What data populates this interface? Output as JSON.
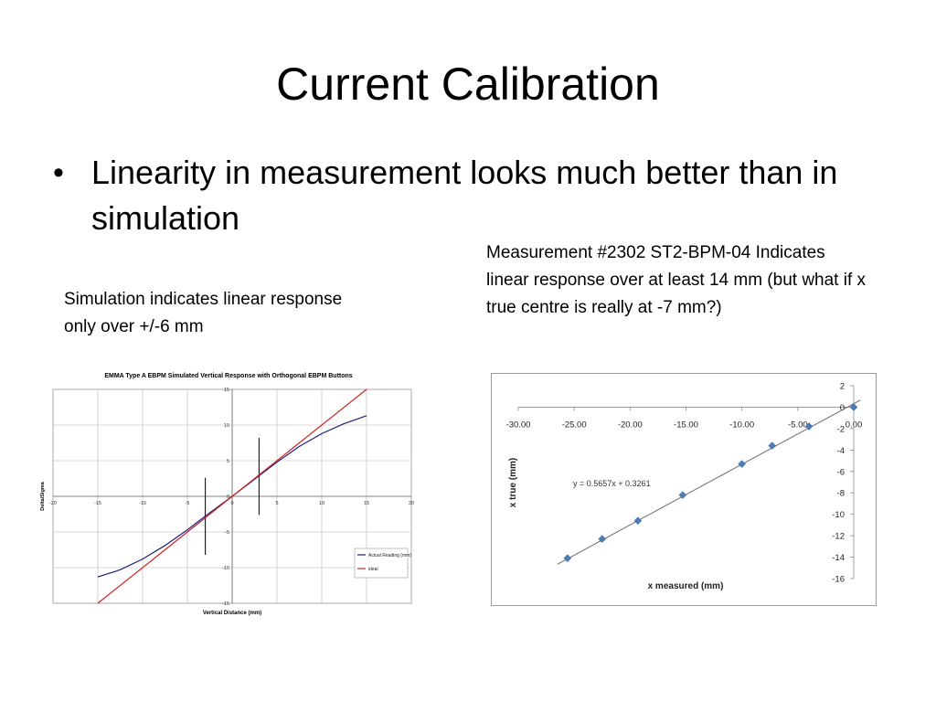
{
  "slide": {
    "title": "Current Calibration",
    "bullet": "Linearity in measurement looks much better than in simulation",
    "note_left": "Simulation indicates linear response only over  +/-6 mm",
    "note_right": "Measurement #2302 ST2-BPM-04 Indicates linear response over at least 14 mm (but what if x true centre is really at -7 mm?)"
  },
  "chart_data": [
    {
      "type": "line",
      "title": "EMMA Type A EBPM Simulated Vertical Response with Orthogonal EBPM Buttons",
      "xlabel": "Vertical Distance (mm)",
      "ylabel": "Delta/Sigma",
      "xlim": [
        -20,
        20
      ],
      "ylim": [
        -15,
        15
      ],
      "xticks": [
        "-20",
        "-15",
        "-10",
        "-5",
        "0",
        "5",
        "10",
        "15",
        "20"
      ],
      "yticks": [
        "-15",
        "-10",
        "-5",
        "0",
        "5",
        "10",
        "15"
      ],
      "grid": true,
      "legend_position": "bottom-right",
      "markers": [
        {
          "x": -3,
          "y_range": [
            -8.2,
            2.6
          ]
        },
        {
          "x": 3,
          "y_range": [
            -2.6,
            8.2
          ]
        }
      ],
      "series": [
        {
          "name": "Actual Reading (mm)",
          "color": "#1f1f7a",
          "x": [
            -15,
            -12.5,
            -10,
            -7.5,
            -5,
            -2.5,
            0,
            2.5,
            5,
            7.5,
            10,
            12.5,
            15
          ],
          "y": [
            -11.3,
            -10.3,
            -8.8,
            -6.9,
            -4.7,
            -2.3,
            0,
            2.4,
            4.8,
            7.0,
            8.8,
            10.2,
            11.3
          ]
        },
        {
          "name": "ideal",
          "color": "#cc2222",
          "x": [
            -15,
            15
          ],
          "y": [
            -15,
            15
          ]
        }
      ]
    },
    {
      "type": "scatter",
      "xlabel": "x measured (mm)",
      "ylabel": "x true (mm)",
      "xlim": [
        -30,
        0
      ],
      "ylim": [
        -16,
        2
      ],
      "xticks": [
        "-30.00",
        "-25.00",
        "-20.00",
        "-15.00",
        "-10.00",
        "-5.00",
        "0.00"
      ],
      "yticks": [
        "2",
        "0",
        "-2",
        "-4",
        "-6",
        "-8",
        "-10",
        "-12",
        "-14",
        "-16"
      ],
      "grid": false,
      "trendline_equation": "y = 0.5657x + 0.3261",
      "trendline": {
        "slope": 0.5657,
        "intercept": 0.3261
      },
      "series": [
        {
          "color": "#4a7ebb",
          "x": [
            -25.6,
            -22.5,
            -19.3,
            -15.3,
            -10.0,
            -7.3,
            -4.0,
            0.0
          ],
          "y": [
            -14.1,
            -12.3,
            -10.6,
            -8.2,
            -5.3,
            -3.6,
            -1.8,
            0.0
          ]
        }
      ]
    }
  ]
}
